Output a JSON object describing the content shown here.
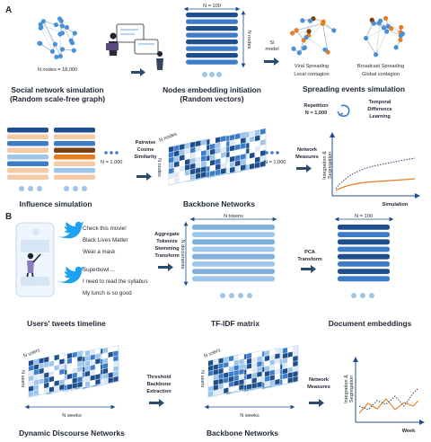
{
  "panel_labels": [
    "A",
    "B"
  ],
  "colors": {
    "dark_blue": "#1f4e8c",
    "mid_blue": "#3d7cc9",
    "light_blue": "#9ec6ea",
    "orange": "#e67e22",
    "peach": "#f5cba7",
    "brown": "#7b3f10",
    "node_blue": "#4a90d9",
    "text": "#1e2633"
  },
  "icons": [
    "network-icon",
    "people-presentation-icon",
    "arrow-right-icon",
    "cycle-icon",
    "twitter-bird-icon",
    "phone-user-icon"
  ],
  "panel_a": {
    "row1": {
      "graph_label": "N nodes = 18,000",
      "graph_caption": [
        "Social network simulation",
        "(Random scale-free graph)"
      ],
      "embed_top_label": "N = 100",
      "embed_side_label": "N nodes",
      "embed_caption": [
        "Nodes embedding initiation",
        "(Random vectors)"
      ],
      "si_label": [
        "SI",
        "model"
      ],
      "viral_label": [
        "Viral Spreading",
        "Local contagion"
      ],
      "broadcast_label": [
        "Broadcast Spreading",
        "Global contagion"
      ],
      "spreading_caption": "Spreading events simulation",
      "repetition_label": [
        "Repetition",
        "N = 1,000"
      ],
      "tdl_label": [
        "Temporal",
        "Difference",
        "Learning"
      ]
    },
    "row2": {
      "n_label": "N = 1,000",
      "cosine_label": [
        "Pairwise",
        "Cosine",
        "Similarity"
      ],
      "matrix_top_label": "N nodes",
      "matrix_side_label": "N nodes",
      "matrix_n_label": "N = 1,000",
      "network_measures_label": [
        "Network",
        "Measures"
      ],
      "influence_caption": "Influence simulation",
      "backbone_caption": "Backbone Networks",
      "plot_ylabel": [
        "Integration &",
        "Segregation"
      ],
      "plot_xlabel": "Simulation"
    }
  },
  "panel_b": {
    "tweets": [
      "Check this movie!",
      "Black Lives Matter",
      "Wear a mask",
      "Superbowl ...",
      "I need to read the syllabus",
      "My lunch is so good"
    ],
    "tweets_caption": "Users' tweets timeline",
    "aggregate_label": [
      "Aggregate",
      "Tokenize",
      "Stemming",
      "Transform"
    ],
    "tfidf_top_label": "N tokens",
    "tfidf_side_label": "N documents",
    "tfidf_caption": "TF-IDF matrix",
    "pca_label": [
      "PCA",
      "Transform"
    ],
    "doc_top_label": "N = 100",
    "doc_caption": "Document embeddings",
    "dyn_top_label": "N users",
    "dyn_side_label": "N users",
    "dyn_bottom_label": "N weeks",
    "dyn_caption": "Dynamic Discourse Networks",
    "threshold_label": [
      "Threshold",
      "Backbone",
      "Extraction"
    ],
    "bb_top_label": "N users",
    "bb_side_label": "N users",
    "bb_bottom_label": "N weeks",
    "bb_caption": "Backbone Networks",
    "network_measures_label": [
      "Network",
      "Measures"
    ],
    "plot_ylabel": [
      "Integration &",
      "Segregation"
    ],
    "plot_xlabel": "Week"
  }
}
